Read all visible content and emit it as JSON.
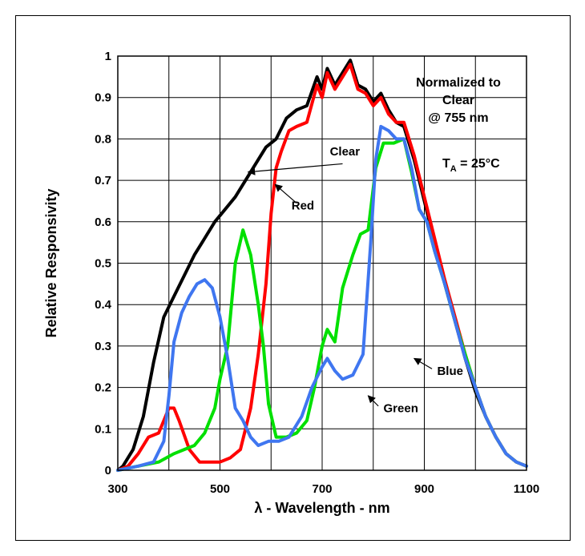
{
  "chart_data": {
    "type": "line",
    "title": "",
    "xlabel": "λ - Wavelength - nm",
    "ylabel": "Relative Responsivity",
    "xlim": [
      300,
      1100
    ],
    "ylim": [
      0,
      1
    ],
    "x_ticks": [
      "300",
      "500",
      "700",
      "900",
      "1100"
    ],
    "y_ticks": [
      "0",
      "0.1",
      "0.2",
      "0.3",
      "0.4",
      "0.5",
      "0.6",
      "0.7",
      "0.8",
      "0.9",
      "1"
    ],
    "grid": true,
    "notes": {
      "normalized_line1": "Normalized to",
      "normalized_line2": "Clear",
      "normalized_line3": "@ 755 nm",
      "temp_prefix": "T",
      "temp_sub": "A",
      "temp_suffix": " = 25°C"
    },
    "annotations": [
      {
        "text": "Clear",
        "x": 715,
        "y": 0.76
      },
      {
        "text": "Red",
        "x": 640,
        "y": 0.63
      },
      {
        "text": "Blue",
        "x": 925,
        "y": 0.23
      },
      {
        "text": "Green",
        "x": 820,
        "y": 0.14
      }
    ],
    "series": [
      {
        "name": "Clear",
        "color": "#000000",
        "points": [
          [
            300,
            0
          ],
          [
            310,
            0.01
          ],
          [
            330,
            0.05
          ],
          [
            350,
            0.13
          ],
          [
            370,
            0.26
          ],
          [
            390,
            0.37
          ],
          [
            410,
            0.42
          ],
          [
            430,
            0.47
          ],
          [
            450,
            0.52
          ],
          [
            470,
            0.56
          ],
          [
            490,
            0.6
          ],
          [
            510,
            0.63
          ],
          [
            530,
            0.66
          ],
          [
            550,
            0.7
          ],
          [
            570,
            0.74
          ],
          [
            590,
            0.78
          ],
          [
            610,
            0.8
          ],
          [
            630,
            0.85
          ],
          [
            650,
            0.87
          ],
          [
            670,
            0.88
          ],
          [
            690,
            0.95
          ],
          [
            700,
            0.92
          ],
          [
            710,
            0.97
          ],
          [
            725,
            0.93
          ],
          [
            740,
            0.96
          ],
          [
            755,
            0.99
          ],
          [
            770,
            0.93
          ],
          [
            785,
            0.92
          ],
          [
            800,
            0.89
          ],
          [
            815,
            0.91
          ],
          [
            830,
            0.87
          ],
          [
            845,
            0.84
          ],
          [
            860,
            0.83
          ],
          [
            880,
            0.75
          ],
          [
            900,
            0.65
          ],
          [
            920,
            0.55
          ],
          [
            940,
            0.45
          ],
          [
            960,
            0.36
          ],
          [
            980,
            0.27
          ],
          [
            1000,
            0.19
          ],
          [
            1020,
            0.13
          ],
          [
            1040,
            0.08
          ],
          [
            1060,
            0.04
          ],
          [
            1080,
            0.02
          ],
          [
            1100,
            0.01
          ]
        ]
      },
      {
        "name": "Red",
        "color": "#ff0000",
        "points": [
          [
            300,
            0
          ],
          [
            320,
            0.01
          ],
          [
            340,
            0.04
          ],
          [
            360,
            0.08
          ],
          [
            380,
            0.09
          ],
          [
            390,
            0.12
          ],
          [
            400,
            0.15
          ],
          [
            410,
            0.15
          ],
          [
            420,
            0.12
          ],
          [
            440,
            0.05
          ],
          [
            460,
            0.02
          ],
          [
            480,
            0.02
          ],
          [
            500,
            0.02
          ],
          [
            520,
            0.03
          ],
          [
            540,
            0.05
          ],
          [
            560,
            0.15
          ],
          [
            575,
            0.28
          ],
          [
            590,
            0.45
          ],
          [
            600,
            0.62
          ],
          [
            610,
            0.73
          ],
          [
            620,
            0.77
          ],
          [
            635,
            0.82
          ],
          [
            650,
            0.83
          ],
          [
            670,
            0.84
          ],
          [
            690,
            0.93
          ],
          [
            700,
            0.9
          ],
          [
            710,
            0.96
          ],
          [
            725,
            0.92
          ],
          [
            740,
            0.95
          ],
          [
            755,
            0.98
          ],
          [
            770,
            0.92
          ],
          [
            785,
            0.91
          ],
          [
            800,
            0.88
          ],
          [
            815,
            0.9
          ],
          [
            830,
            0.86
          ],
          [
            845,
            0.84
          ],
          [
            860,
            0.84
          ],
          [
            880,
            0.76
          ],
          [
            900,
            0.66
          ],
          [
            920,
            0.56
          ],
          [
            940,
            0.46
          ],
          [
            960,
            0.37
          ],
          [
            980,
            0.28
          ],
          [
            1000,
            0.2
          ],
          [
            1020,
            0.13
          ],
          [
            1040,
            0.08
          ],
          [
            1060,
            0.04
          ],
          [
            1080,
            0.02
          ],
          [
            1100,
            0.01
          ]
        ]
      },
      {
        "name": "Green",
        "color": "#00e000",
        "points": [
          [
            300,
            0
          ],
          [
            340,
            0.01
          ],
          [
            380,
            0.02
          ],
          [
            410,
            0.04
          ],
          [
            430,
            0.05
          ],
          [
            450,
            0.06
          ],
          [
            470,
            0.09
          ],
          [
            490,
            0.15
          ],
          [
            500,
            0.22
          ],
          [
            515,
            0.3
          ],
          [
            530,
            0.5
          ],
          [
            545,
            0.58
          ],
          [
            560,
            0.52
          ],
          [
            575,
            0.4
          ],
          [
            585,
            0.3
          ],
          [
            595,
            0.16
          ],
          [
            610,
            0.08
          ],
          [
            630,
            0.08
          ],
          [
            650,
            0.09
          ],
          [
            670,
            0.12
          ],
          [
            685,
            0.2
          ],
          [
            700,
            0.3
          ],
          [
            710,
            0.34
          ],
          [
            725,
            0.31
          ],
          [
            740,
            0.44
          ],
          [
            760,
            0.52
          ],
          [
            775,
            0.57
          ],
          [
            790,
            0.58
          ],
          [
            805,
            0.73
          ],
          [
            820,
            0.79
          ],
          [
            840,
            0.79
          ],
          [
            860,
            0.8
          ],
          [
            875,
            0.72
          ],
          [
            890,
            0.63
          ],
          [
            905,
            0.6
          ],
          [
            920,
            0.53
          ],
          [
            940,
            0.45
          ],
          [
            960,
            0.36
          ],
          [
            980,
            0.28
          ],
          [
            1000,
            0.2
          ],
          [
            1020,
            0.13
          ],
          [
            1040,
            0.08
          ],
          [
            1060,
            0.04
          ],
          [
            1080,
            0.02
          ],
          [
            1100,
            0.01
          ]
        ]
      },
      {
        "name": "Blue",
        "color": "#3f76f0",
        "points": [
          [
            300,
            0
          ],
          [
            340,
            0.01
          ],
          [
            370,
            0.02
          ],
          [
            390,
            0.07
          ],
          [
            400,
            0.18
          ],
          [
            410,
            0.31
          ],
          [
            425,
            0.38
          ],
          [
            440,
            0.42
          ],
          [
            455,
            0.45
          ],
          [
            470,
            0.46
          ],
          [
            485,
            0.44
          ],
          [
            500,
            0.37
          ],
          [
            515,
            0.27
          ],
          [
            530,
            0.15
          ],
          [
            545,
            0.12
          ],
          [
            560,
            0.08
          ],
          [
            575,
            0.06
          ],
          [
            595,
            0.07
          ],
          [
            615,
            0.07
          ],
          [
            635,
            0.08
          ],
          [
            660,
            0.13
          ],
          [
            680,
            0.2
          ],
          [
            700,
            0.25
          ],
          [
            710,
            0.27
          ],
          [
            725,
            0.24
          ],
          [
            740,
            0.22
          ],
          [
            760,
            0.23
          ],
          [
            780,
            0.28
          ],
          [
            795,
            0.55
          ],
          [
            805,
            0.75
          ],
          [
            815,
            0.83
          ],
          [
            830,
            0.82
          ],
          [
            845,
            0.8
          ],
          [
            860,
            0.8
          ],
          [
            875,
            0.73
          ],
          [
            890,
            0.63
          ],
          [
            905,
            0.6
          ],
          [
            920,
            0.53
          ],
          [
            940,
            0.45
          ],
          [
            960,
            0.36
          ],
          [
            980,
            0.27
          ],
          [
            1000,
            0.2
          ],
          [
            1020,
            0.13
          ],
          [
            1040,
            0.08
          ],
          [
            1060,
            0.04
          ],
          [
            1080,
            0.02
          ],
          [
            1100,
            0.01
          ]
        ]
      }
    ]
  }
}
